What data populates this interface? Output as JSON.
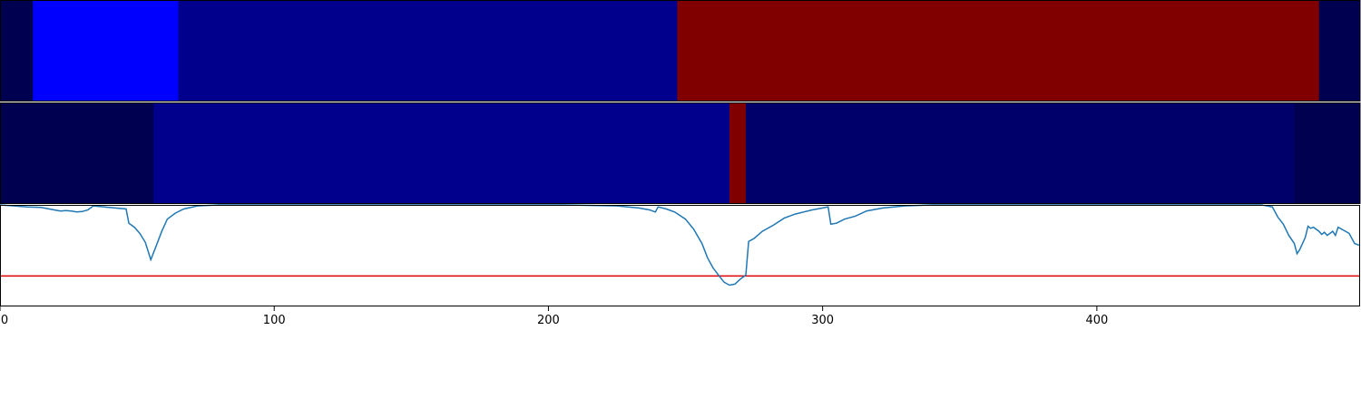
{
  "chart_data": [
    {
      "type": "heatmap",
      "colors": {
        "dark_navy": "#000050",
        "medium_navy": "#00006a",
        "blue": "#00008c",
        "bright_blue": "#0000ff",
        "red": "#800000"
      },
      "segments": [
        {
          "start": 0,
          "end": 12,
          "color": "#000050"
        },
        {
          "start": 12,
          "end": 65,
          "color": "#0000ff"
        },
        {
          "start": 65,
          "end": 247,
          "color": "#00008c"
        },
        {
          "start": 247,
          "end": 481,
          "color": "#800000"
        },
        {
          "start": 481,
          "end": 496,
          "color": "#000050"
        }
      ]
    },
    {
      "type": "heatmap",
      "segments": [
        {
          "start": 0,
          "end": 56,
          "color": "#000050"
        },
        {
          "start": 56,
          "end": 266,
          "color": "#00008c"
        },
        {
          "start": 266,
          "end": 272,
          "color": "#800000"
        },
        {
          "start": 272,
          "end": 472,
          "color": "#00006a"
        },
        {
          "start": 472,
          "end": 496,
          "color": "#000050"
        }
      ]
    },
    {
      "type": "line",
      "line_color": "#1f77b4",
      "threshold": {
        "value": 0.3,
        "color": "#e00000"
      },
      "xlim": [
        0,
        496
      ],
      "ylim": [
        0,
        1
      ],
      "xticks": [
        0,
        100,
        200,
        300,
        400
      ],
      "xtick_labels": [
        "0",
        "100",
        "200",
        "300",
        "400"
      ],
      "grid": false,
      "points": [
        [
          0,
          1.0
        ],
        [
          5,
          0.99
        ],
        [
          10,
          0.98
        ],
        [
          15,
          0.975
        ],
        [
          18,
          0.96
        ],
        [
          20,
          0.95
        ],
        [
          22,
          0.94
        ],
        [
          24,
          0.945
        ],
        [
          26,
          0.94
        ],
        [
          28,
          0.93
        ],
        [
          30,
          0.935
        ],
        [
          32,
          0.95
        ],
        [
          34,
          0.99
        ],
        [
          38,
          0.98
        ],
        [
          42,
          0.97
        ],
        [
          46,
          0.96
        ],
        [
          47,
          0.82
        ],
        [
          49,
          0.78
        ],
        [
          51,
          0.72
        ],
        [
          53,
          0.63
        ],
        [
          55,
          0.46
        ],
        [
          57,
          0.6
        ],
        [
          59,
          0.74
        ],
        [
          61,
          0.86
        ],
        [
          64,
          0.92
        ],
        [
          67,
          0.96
        ],
        [
          72,
          0.99
        ],
        [
          80,
          1.0
        ],
        [
          110,
          1.0
        ],
        [
          205,
          1.0
        ],
        [
          225,
          0.99
        ],
        [
          233,
          0.97
        ],
        [
          237,
          0.95
        ],
        [
          239,
          0.93
        ],
        [
          240,
          0.98
        ],
        [
          243,
          0.96
        ],
        [
          246,
          0.93
        ],
        [
          250,
          0.86
        ],
        [
          253,
          0.76
        ],
        [
          256,
          0.62
        ],
        [
          258,
          0.48
        ],
        [
          260,
          0.38
        ],
        [
          262,
          0.31
        ],
        [
          264,
          0.24
        ],
        [
          266,
          0.21
        ],
        [
          268,
          0.22
        ],
        [
          270,
          0.27
        ],
        [
          272,
          0.31
        ],
        [
          273,
          0.64
        ],
        [
          275,
          0.67
        ],
        [
          278,
          0.74
        ],
        [
          282,
          0.8
        ],
        [
          286,
          0.87
        ],
        [
          290,
          0.91
        ],
        [
          296,
          0.95
        ],
        [
          300,
          0.97
        ],
        [
          302,
          0.98
        ],
        [
          303,
          0.81
        ],
        [
          305,
          0.82
        ],
        [
          308,
          0.86
        ],
        [
          312,
          0.89
        ],
        [
          316,
          0.94
        ],
        [
          322,
          0.97
        ],
        [
          330,
          0.99
        ],
        [
          340,
          1.0
        ],
        [
          460,
          1.0
        ],
        [
          464,
          0.98
        ],
        [
          466,
          0.88
        ],
        [
          468,
          0.81
        ],
        [
          470,
          0.7
        ],
        [
          472,
          0.62
        ],
        [
          473,
          0.52
        ],
        [
          474,
          0.56
        ],
        [
          476,
          0.68
        ],
        [
          477,
          0.79
        ],
        [
          478,
          0.77
        ],
        [
          479,
          0.78
        ],
        [
          480,
          0.76
        ],
        [
          481,
          0.74
        ],
        [
          482,
          0.71
        ],
        [
          483,
          0.73
        ],
        [
          484,
          0.7
        ],
        [
          485,
          0.72
        ],
        [
          486,
          0.74
        ],
        [
          487,
          0.7
        ],
        [
          488,
          0.78
        ],
        [
          490,
          0.75
        ],
        [
          492,
          0.72
        ],
        [
          494,
          0.62
        ],
        [
          496,
          0.6
        ]
      ]
    }
  ]
}
